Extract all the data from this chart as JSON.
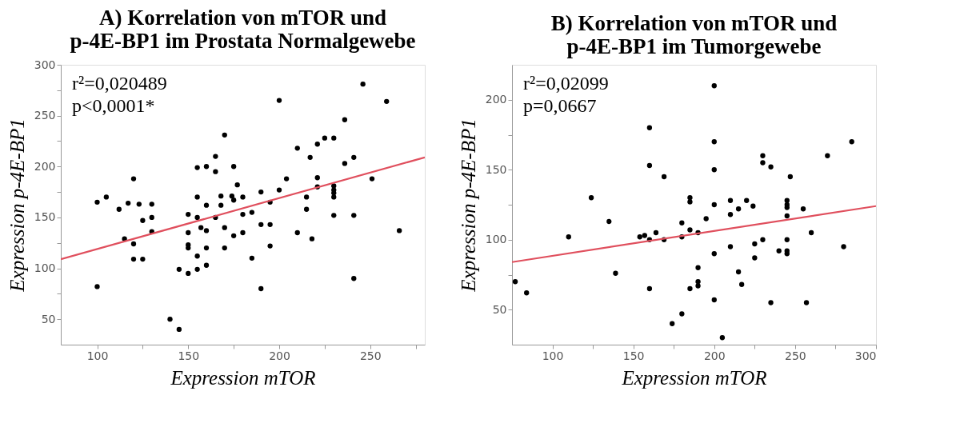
{
  "chart_data": [
    {
      "type": "scatter",
      "title": "A) Korrelation von mTOR und\np-4E-BP1 im Prostata Normalgewebe",
      "xlabel": "Expression mTOR",
      "ylabel": "Expression p-4E-BP1",
      "xlim": [
        80,
        280
      ],
      "ylim": [
        25,
        300
      ],
      "xticks": [
        100,
        {
          "value": 125,
          "label": null
        },
        150,
        {
          "value": 175,
          "label": null
        },
        200,
        {
          "value": 225,
          "label": null
        },
        250,
        {
          "value": 275,
          "label": null
        }
      ],
      "yticks": [
        50,
        {
          "value": 75,
          "label": null
        },
        100,
        {
          "value": 125,
          "label": null
        },
        150,
        {
          "value": 175,
          "label": null
        },
        200,
        {
          "value": 225,
          "label": null
        },
        250,
        {
          "value": 275,
          "label": null
        },
        300
      ],
      "marker": "circle",
      "grid": false,
      "legend": false,
      "annotations": [
        "r²=0,020489",
        "p<0,0001*"
      ],
      "series": [
        {
          "color": "#000000",
          "x": [
            100,
            105,
            100,
            112,
            117,
            115,
            120,
            120,
            120,
            123,
            125,
            125,
            130,
            130,
            130,
            140,
            145,
            145,
            150,
            150,
            150,
            150,
            150,
            155,
            155,
            155,
            155,
            155,
            157,
            160,
            160,
            160,
            160,
            160,
            165,
            165,
            165,
            168,
            168,
            170,
            170,
            170,
            174,
            175,
            175,
            177,
            180,
            180,
            175,
            180,
            185,
            185,
            190,
            190,
            190,
            195,
            195,
            195,
            200,
            200,
            204,
            210,
            210,
            215,
            215,
            217,
            218,
            221,
            221,
            221,
            225,
            230,
            230,
            230,
            230,
            230,
            230,
            236,
            236,
            241,
            241,
            241,
            246,
            251,
            259,
            266
          ],
          "values": [
            165,
            170,
            82,
            158,
            164,
            129,
            188,
            124,
            109,
            163,
            147,
            109,
            163,
            150,
            136,
            50,
            40,
            99,
            153,
            135,
            123,
            120,
            95,
            199,
            170,
            150,
            112,
            99,
            140,
            200,
            162,
            137,
            120,
            103,
            210,
            195,
            150,
            171,
            162,
            231,
            140,
            120,
            171,
            200,
            167,
            182,
            170,
            153,
            132,
            135,
            155,
            110,
            175,
            143,
            80,
            165,
            143,
            122,
            265,
            177,
            188,
            218,
            135,
            170,
            158,
            209,
            129,
            222,
            189,
            180,
            228,
            228,
            181,
            177,
            174,
            170,
            152,
            246,
            203,
            209,
            152,
            90,
            281,
            188,
            264,
            137
          ]
        },
        {
          "type": "line",
          "marker": "none",
          "color": "#e0505e",
          "x": [
            80,
            280
          ],
          "values": [
            109,
            209
          ]
        }
      ]
    },
    {
      "type": "scatter",
      "title": "B) Korrelation von mTOR und\np-4E-BP1 im Tumorgewebe",
      "xlabel": "Expression mTOR",
      "ylabel": "Expression p-4E-BP1",
      "xlim": [
        75,
        300
      ],
      "ylim": [
        25,
        225
      ],
      "xticks": [
        100,
        {
          "value": 125,
          "label": null
        },
        150,
        {
          "value": 175,
          "label": null
        },
        200,
        {
          "value": 225,
          "label": null
        },
        250,
        {
          "value": 275,
          "label": null
        },
        300
      ],
      "yticks": [
        50,
        {
          "value": 75,
          "label": null
        },
        100,
        {
          "value": 125,
          "label": null
        },
        150,
        {
          "value": 175,
          "label": null
        },
        200
      ],
      "marker": "circle",
      "grid": false,
      "legend": false,
      "annotations": [
        "r²=0,02099",
        "p=0,0667"
      ],
      "series": [
        {
          "color": "#000000",
          "x": [
            77,
            84,
            110,
            124,
            135,
            139,
            154,
            157,
            160,
            160,
            160,
            160,
            164,
            169,
            169,
            174,
            200,
            200,
            200,
            185,
            185,
            180,
            185,
            190,
            180,
            195,
            200,
            200,
            200,
            190,
            190,
            190,
            185,
            180,
            205,
            210,
            210,
            210,
            215,
            215,
            217,
            220,
            224,
            225,
            225,
            230,
            230,
            230,
            235,
            235,
            240,
            245,
            245,
            245,
            245,
            245,
            245,
            245,
            247,
            255,
            257,
            260,
            270,
            280,
            285
          ],
          "values": [
            70,
            62,
            102,
            130,
            113,
            76,
            102,
            103,
            180,
            153,
            100,
            65,
            105,
            145,
            100,
            40,
            210,
            170,
            150,
            130,
            127,
            112,
            107,
            105,
            102,
            115,
            125,
            90,
            57,
            80,
            70,
            67,
            65,
            47,
            30,
            128,
            118,
            95,
            122,
            77,
            68,
            128,
            124,
            97,
            87,
            160,
            155,
            100,
            152,
            55,
            92,
            128,
            125,
            123,
            117,
            100,
            92,
            90,
            145,
            122,
            55,
            105,
            160,
            95,
            170
          ]
        },
        {
          "type": "line",
          "marker": "none",
          "color": "#e0505e",
          "x": [
            75,
            300
          ],
          "values": [
            84,
            124
          ]
        }
      ]
    }
  ]
}
